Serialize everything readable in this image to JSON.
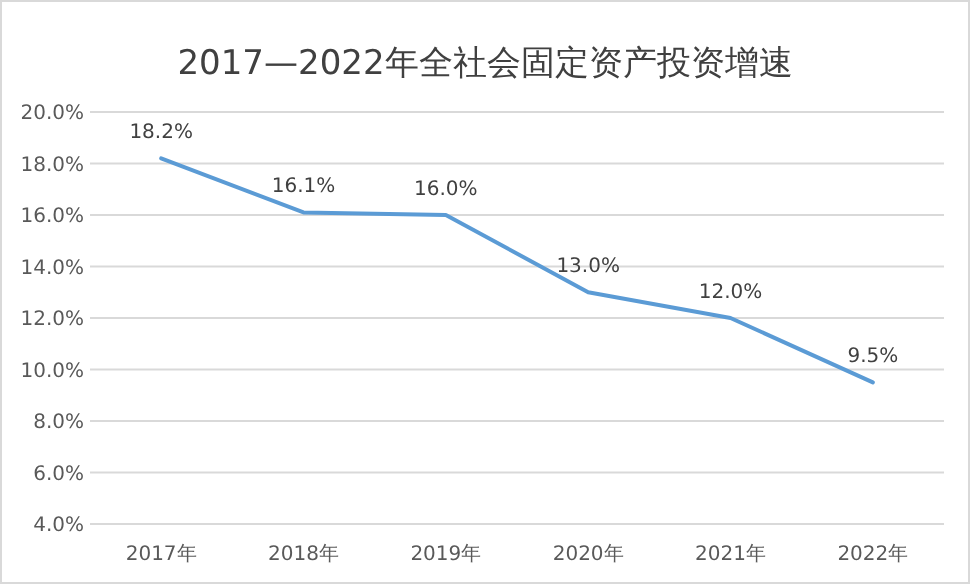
{
  "chart_data": {
    "type": "line",
    "title": "2017—2022年全社会固定资产投资增速",
    "categories": [
      "2017年",
      "2018年",
      "2019年",
      "2020年",
      "2021年",
      "2022年"
    ],
    "values": [
      18.2,
      16.1,
      16.0,
      13.0,
      12.0,
      9.5
    ],
    "value_labels": [
      "18.2%",
      "16.1%",
      "16.0%",
      "13.0%",
      "12.0%",
      "9.5%"
    ],
    "color": "#5b9bd5",
    "ylim": [
      4,
      20
    ],
    "yticks": [
      {
        "value": 4,
        "label": "4.0%"
      },
      {
        "value": 6,
        "label": "6.0%"
      },
      {
        "value": 8,
        "label": "8.0%"
      },
      {
        "value": 10,
        "label": "10.0%"
      },
      {
        "value": 12,
        "label": "12.0%"
      },
      {
        "value": 14,
        "label": "14.0%"
      },
      {
        "value": 16,
        "label": "16.0%"
      },
      {
        "value": 18,
        "label": "18.0%"
      },
      {
        "value": 20,
        "label": "20.0%"
      }
    ],
    "grid": "y",
    "marker": "none",
    "line_style": "solid"
  }
}
